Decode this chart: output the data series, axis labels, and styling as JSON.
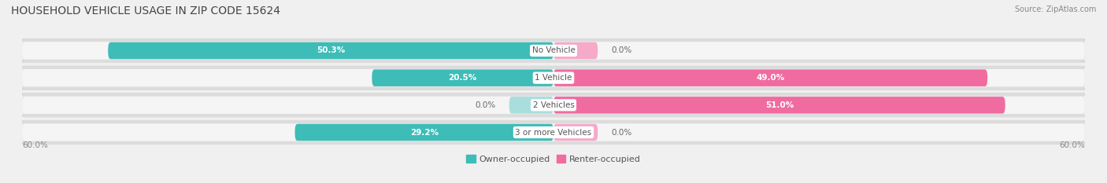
{
  "title": "HOUSEHOLD VEHICLE USAGE IN ZIP CODE 15624",
  "source": "Source: ZipAtlas.com",
  "categories": [
    "No Vehicle",
    "1 Vehicle",
    "2 Vehicles",
    "3 or more Vehicles"
  ],
  "owner_values": [
    50.3,
    20.5,
    0.0,
    29.2
  ],
  "renter_values": [
    0.0,
    49.0,
    51.0,
    0.0
  ],
  "owner_color": "#3DBCB8",
  "owner_color_light": "#A8DEDE",
  "renter_color": "#F06BA0",
  "renter_color_light": "#F5AACA",
  "owner_label": "Owner-occupied",
  "renter_label": "Renter-occupied",
  "axis_limit": 60.0,
  "background_color": "#f0f0f0",
  "bar_background_color": "#e0e0e0",
  "bar_inner_color": "#f8f8f8",
  "title_fontsize": 10,
  "label_fontsize": 8,
  "bar_height": 0.62,
  "stub_value": 5.0
}
